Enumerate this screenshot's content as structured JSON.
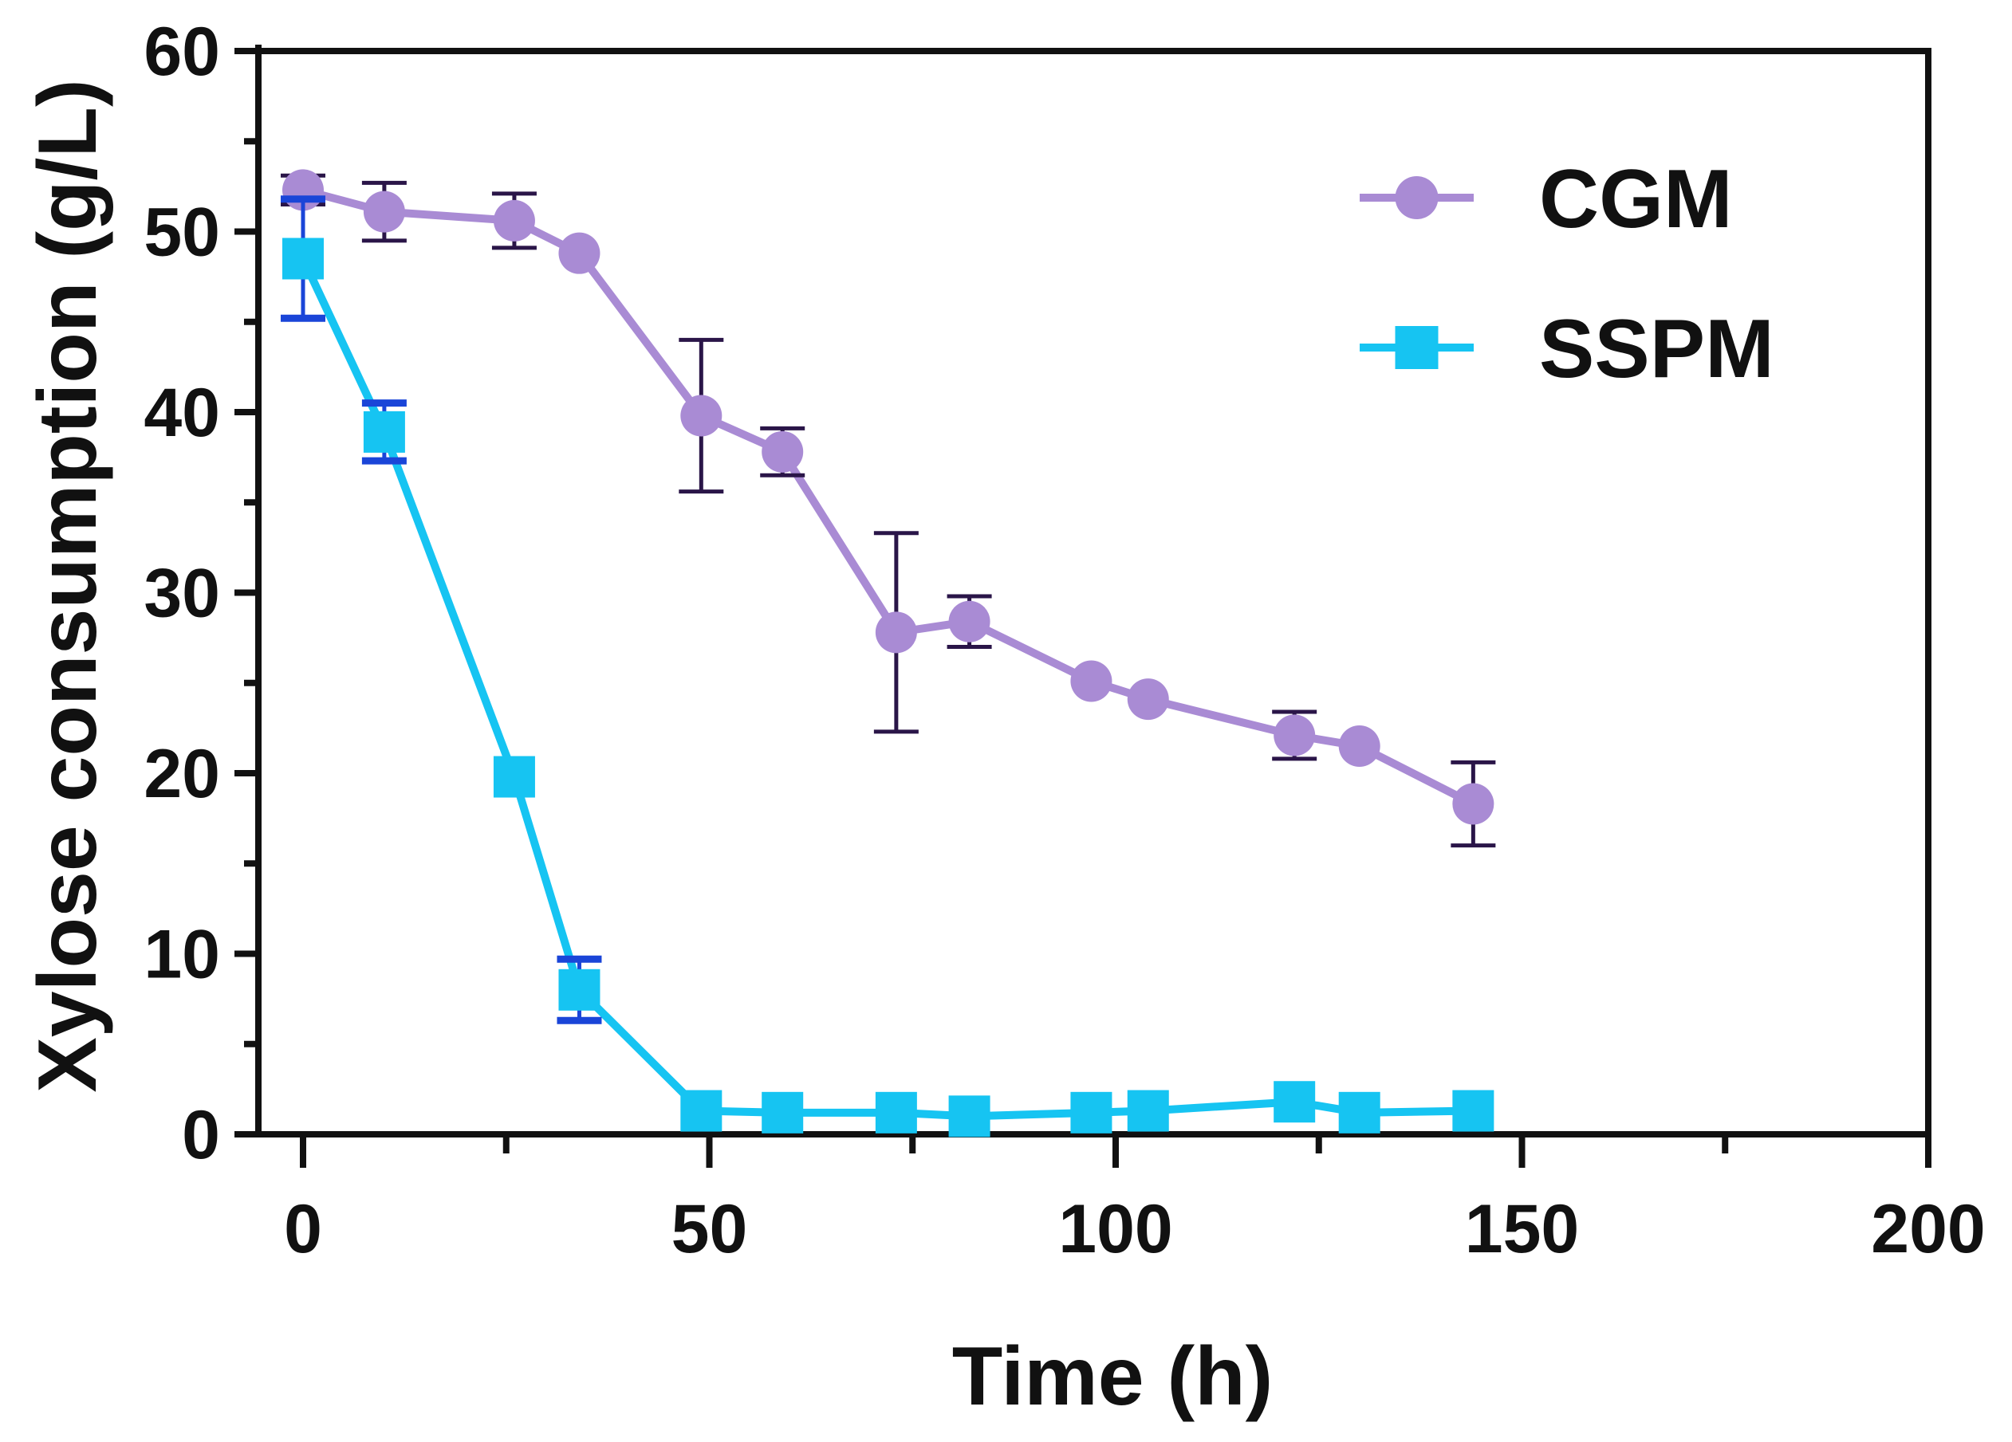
{
  "chart_data": {
    "type": "line",
    "title": "",
    "xlabel": "Time (h)",
    "ylabel": "Xylose consumption (g/L)",
    "xlim": [
      0,
      200
    ],
    "ylim": [
      0,
      60
    ],
    "xticks": [
      "0",
      "50",
      "100",
      "150",
      "200"
    ],
    "yticks": [
      "0",
      "10",
      "20",
      "30",
      "40",
      "50",
      "60"
    ],
    "grid": false,
    "legend_position": "top-right",
    "series": [
      {
        "name": "CGM",
        "marker": "circle",
        "color": "#a98bd4",
        "error_color": "#2a1548",
        "x": [
          0,
          10,
          26,
          34,
          49,
          59,
          73,
          82,
          97,
          104,
          122,
          130,
          144
        ],
        "y": [
          52.3,
          51.1,
          50.6,
          48.8,
          39.8,
          37.8,
          27.8,
          28.4,
          25.1,
          24.1,
          22.1,
          21.5,
          18.3
        ],
        "error": [
          0.8,
          1.6,
          1.5,
          0,
          4.2,
          1.3,
          5.5,
          1.4,
          0,
          0,
          1.3,
          0,
          2.3
        ]
      },
      {
        "name": "SSPM",
        "marker": "square",
        "color": "#16c4f2",
        "error_color": "#1a45d8",
        "x": [
          0,
          10,
          26,
          34,
          49,
          59,
          73,
          82,
          97,
          104,
          122,
          130,
          144
        ],
        "y": [
          48.5,
          38.9,
          19.8,
          8.0,
          1.3,
          1.2,
          1.2,
          1.0,
          1.2,
          1.3,
          1.8,
          1.2,
          1.3
        ],
        "error": [
          3.3,
          1.6,
          0,
          1.7,
          0,
          0,
          0,
          0,
          0,
          0,
          0,
          0,
          0
        ]
      }
    ]
  }
}
